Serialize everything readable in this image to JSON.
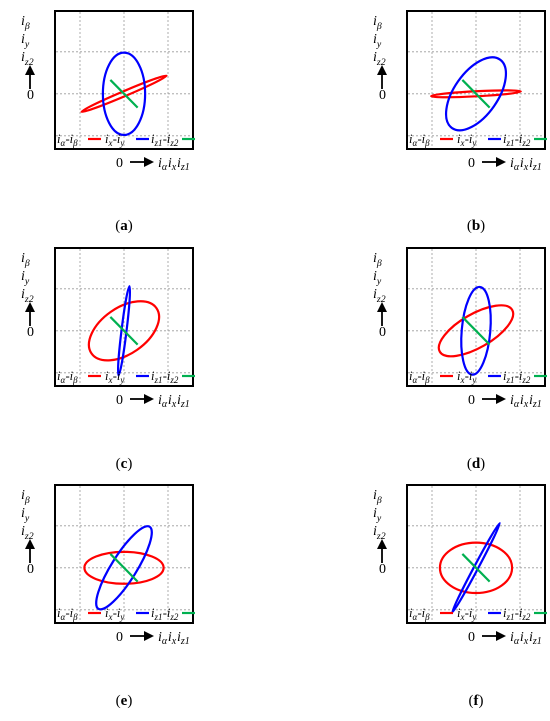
{
  "figure": {
    "panels": [
      {
        "label": "a",
        "caption": "(a)"
      },
      {
        "label": "b",
        "caption": "(b)"
      },
      {
        "label": "c",
        "caption": "(c)"
      },
      {
        "label": "d",
        "caption": "(d)"
      },
      {
        "label": "e",
        "caption": "(e)"
      },
      {
        "label": "f",
        "caption": "(f)"
      }
    ],
    "axes": {
      "y_label_lines": [
        "iβ",
        "iy",
        "iz2"
      ],
      "x_label": "iα ix iz1",
      "origin_tick": "0"
    },
    "legend": [
      {
        "label": "iα-iβ",
        "color": "#ff0000"
      },
      {
        "label": "ix-iy",
        "color": "#0000ff"
      },
      {
        "label": "iz1-iz2",
        "color": "#00b050"
      }
    ]
  },
  "chart_data": [
    {
      "panel": "a",
      "type": "line",
      "xlim": [
        -1,
        1
      ],
      "ylim": [
        -1,
        1
      ],
      "grid": true,
      "series": [
        {
          "name": "iα-iβ",
          "shape": "ellipse",
          "center": [
            0,
            0
          ],
          "semi_axes": [
            1.05,
            0.06
          ],
          "angle_deg": 23
        },
        {
          "name": "ix-iy",
          "shape": "ellipse",
          "center": [
            0,
            0
          ],
          "semi_axes": [
            0.48,
            0.98
          ],
          "angle_deg": 0
        },
        {
          "name": "iz1-iz2",
          "shape": "segment",
          "points": [
            [
              -0.31,
              0.33
            ],
            [
              0.31,
              -0.33
            ]
          ]
        }
      ]
    },
    {
      "panel": "b",
      "type": "line",
      "xlim": [
        -1,
        1
      ],
      "ylim": [
        -1,
        1
      ],
      "grid": true,
      "series": [
        {
          "name": "iα-iβ",
          "shape": "ellipse",
          "center": [
            0,
            0
          ],
          "semi_axes": [
            1.02,
            0.06
          ],
          "angle_deg": 3
        },
        {
          "name": "ix-iy",
          "shape": "ellipse",
          "center": [
            0,
            0
          ],
          "semi_axes": [
            0.95,
            0.52
          ],
          "angle_deg": 55
        },
        {
          "name": "iz1-iz2",
          "shape": "segment",
          "points": [
            [
              -0.31,
              0.33
            ],
            [
              0.31,
              -0.33
            ]
          ]
        }
      ]
    },
    {
      "panel": "c",
      "type": "line",
      "xlim": [
        -1,
        1
      ],
      "ylim": [
        -1,
        1
      ],
      "grid": true,
      "series": [
        {
          "name": "iα-iβ",
          "shape": "ellipse",
          "center": [
            0,
            0
          ],
          "semi_axes": [
            0.9,
            0.55
          ],
          "angle_deg": 35
        },
        {
          "name": "ix-iy",
          "shape": "ellipse",
          "center": [
            0,
            0
          ],
          "semi_axes": [
            1.02,
            0.06
          ],
          "angle_deg": 83
        },
        {
          "name": "iz1-iz2",
          "shape": "segment",
          "points": [
            [
              -0.31,
              0.33
            ],
            [
              0.31,
              -0.33
            ]
          ]
        }
      ]
    },
    {
      "panel": "d",
      "type": "line",
      "xlim": [
        -1,
        1
      ],
      "ylim": [
        -1,
        1
      ],
      "grid": true,
      "series": [
        {
          "name": "iα-iβ",
          "shape": "ellipse",
          "center": [
            0,
            0
          ],
          "semi_axes": [
            0.95,
            0.4
          ],
          "angle_deg": 30
        },
        {
          "name": "ix-iy",
          "shape": "ellipse",
          "center": [
            0,
            0
          ],
          "semi_axes": [
            1.0,
            0.34
          ],
          "angle_deg": 85
        },
        {
          "name": "iz1-iz2",
          "shape": "segment",
          "points": [
            [
              -0.31,
              0.33
            ],
            [
              0.31,
              -0.33
            ]
          ]
        }
      ]
    },
    {
      "panel": "e",
      "type": "line",
      "xlim": [
        -1,
        1
      ],
      "ylim": [
        -1,
        1
      ],
      "grid": true,
      "series": [
        {
          "name": "iα-iβ",
          "shape": "ellipse",
          "center": [
            0,
            0
          ],
          "semi_axes": [
            0.9,
            0.38
          ],
          "angle_deg": 0
        },
        {
          "name": "ix-iy",
          "shape": "ellipse",
          "center": [
            0,
            0
          ],
          "semi_axes": [
            1.1,
            0.3
          ],
          "angle_deg": 58
        },
        {
          "name": "iz1-iz2",
          "shape": "segment",
          "points": [
            [
              -0.31,
              0.33
            ],
            [
              0.31,
              -0.33
            ]
          ]
        }
      ]
    },
    {
      "panel": "f",
      "type": "line",
      "xlim": [
        -1,
        1
      ],
      "ylim": [
        -1,
        1
      ],
      "grid": true,
      "series": [
        {
          "name": "iα-iβ",
          "shape": "ellipse",
          "center": [
            0,
            0
          ],
          "semi_axes": [
            0.82,
            0.6
          ],
          "angle_deg": 0
        },
        {
          "name": "ix-iy",
          "shape": "ellipse",
          "center": [
            0,
            0
          ],
          "semi_axes": [
            1.15,
            0.05
          ],
          "angle_deg": 62
        },
        {
          "name": "iz1-iz2",
          "shape": "segment",
          "points": [
            [
              -0.31,
              0.33
            ],
            [
              0.31,
              -0.33
            ]
          ]
        }
      ]
    }
  ]
}
